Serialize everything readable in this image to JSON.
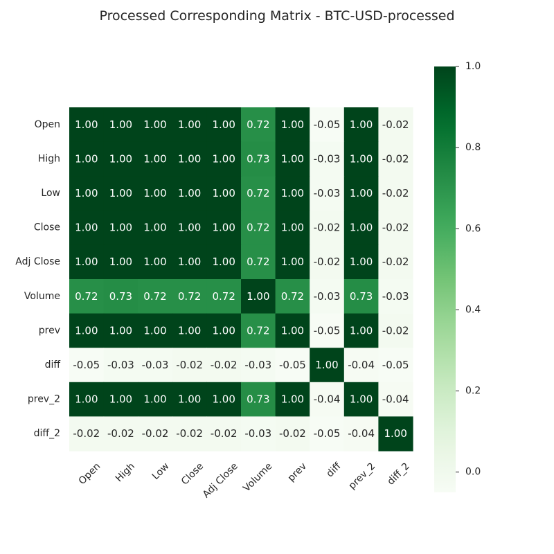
{
  "chart_data": {
    "type": "heatmap",
    "title": "Processed Corresponding Matrix - BTC-USD-processed",
    "row_labels": [
      "Open",
      "High",
      "Low",
      "Close",
      "Adj Close",
      "Volume",
      "prev",
      "diff",
      "prev_2",
      "diff_2"
    ],
    "col_labels": [
      "Open",
      "High",
      "Low",
      "Close",
      "Adj Close",
      "Volume",
      "prev",
      "diff",
      "prev_2",
      "diff_2"
    ],
    "values": [
      [
        1.0,
        1.0,
        1.0,
        1.0,
        1.0,
        0.72,
        1.0,
        -0.05,
        1.0,
        -0.02
      ],
      [
        1.0,
        1.0,
        1.0,
        1.0,
        1.0,
        0.73,
        1.0,
        -0.03,
        1.0,
        -0.02
      ],
      [
        1.0,
        1.0,
        1.0,
        1.0,
        1.0,
        0.72,
        1.0,
        -0.03,
        1.0,
        -0.02
      ],
      [
        1.0,
        1.0,
        1.0,
        1.0,
        1.0,
        0.72,
        1.0,
        -0.02,
        1.0,
        -0.02
      ],
      [
        1.0,
        1.0,
        1.0,
        1.0,
        1.0,
        0.72,
        1.0,
        -0.02,
        1.0,
        -0.02
      ],
      [
        0.72,
        0.73,
        0.72,
        0.72,
        0.72,
        1.0,
        0.72,
        -0.03,
        0.73,
        -0.03
      ],
      [
        1.0,
        1.0,
        1.0,
        1.0,
        1.0,
        0.72,
        1.0,
        -0.05,
        1.0,
        -0.02
      ],
      [
        -0.05,
        -0.03,
        -0.03,
        -0.02,
        -0.02,
        -0.03,
        -0.05,
        1.0,
        -0.04,
        -0.05
      ],
      [
        1.0,
        1.0,
        1.0,
        1.0,
        1.0,
        0.73,
        1.0,
        -0.04,
        1.0,
        -0.04
      ],
      [
        -0.02,
        -0.02,
        -0.02,
        -0.02,
        -0.02,
        -0.03,
        -0.02,
        -0.05,
        -0.04,
        1.0
      ]
    ],
    "vmin": -0.05,
    "vmax": 1.0,
    "colormap": "Greens",
    "colorbar": {
      "ticks": [
        0.0,
        0.2,
        0.4,
        0.6,
        0.8,
        1.0
      ],
      "tick_labels": [
        "0.0",
        "0.2",
        "0.4",
        "0.6",
        "0.8",
        "1.0"
      ]
    },
    "annotation_format": "2 decimals",
    "colors": {
      "low": "#f7fcf5",
      "high": "#00441b",
      "text_light": "#ffffff",
      "text_dark": "#262626"
    }
  }
}
